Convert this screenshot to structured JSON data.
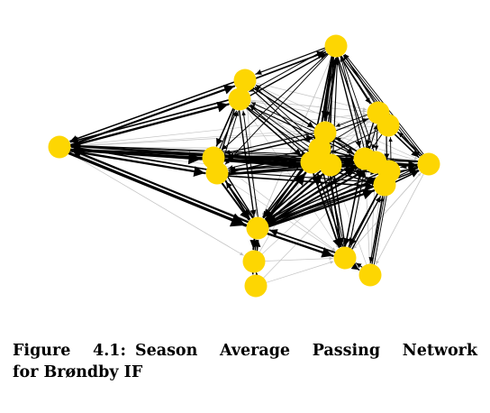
{
  "figure": {
    "caption_label": "Figure 4.1:",
    "caption_text_line1": "Season Average Passing Network",
    "caption_text_line2": "for Brøndby IF"
  },
  "colors": {
    "node": "#FDD602",
    "edge_dark": "#000000",
    "edge_light": "#c8c8c8"
  }
}
